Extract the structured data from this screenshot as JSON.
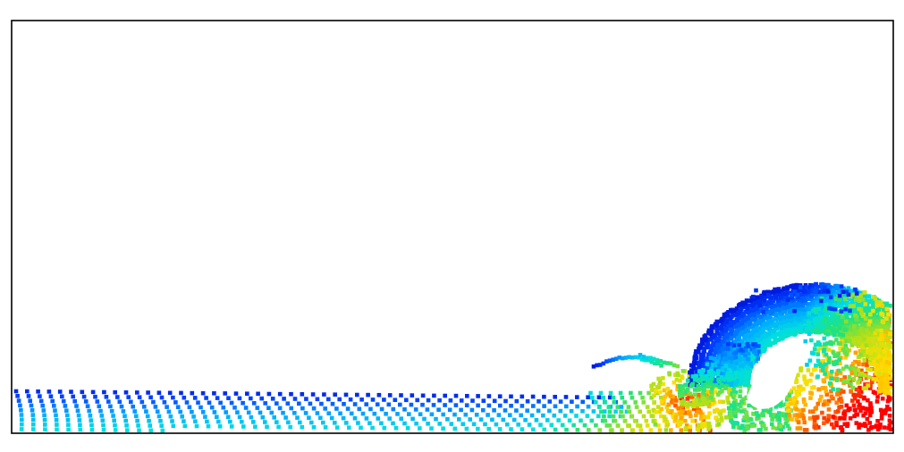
{
  "colors": {
    "background": "#ffffff",
    "frame": "#000000",
    "colormap": [
      "#0000cc",
      "#0044ff",
      "#00aaff",
      "#00e0e0",
      "#22e27a",
      "#a8e01e",
      "#ffe000",
      "#ff8800",
      "#ff0000"
    ]
  },
  "simulation": {
    "kind": "particle-fluid",
    "colormap_name": "jet",
    "features": [
      "wavy-fluid-layer",
      "breaking-wave",
      "air-pocket",
      "splash-jet"
    ]
  }
}
